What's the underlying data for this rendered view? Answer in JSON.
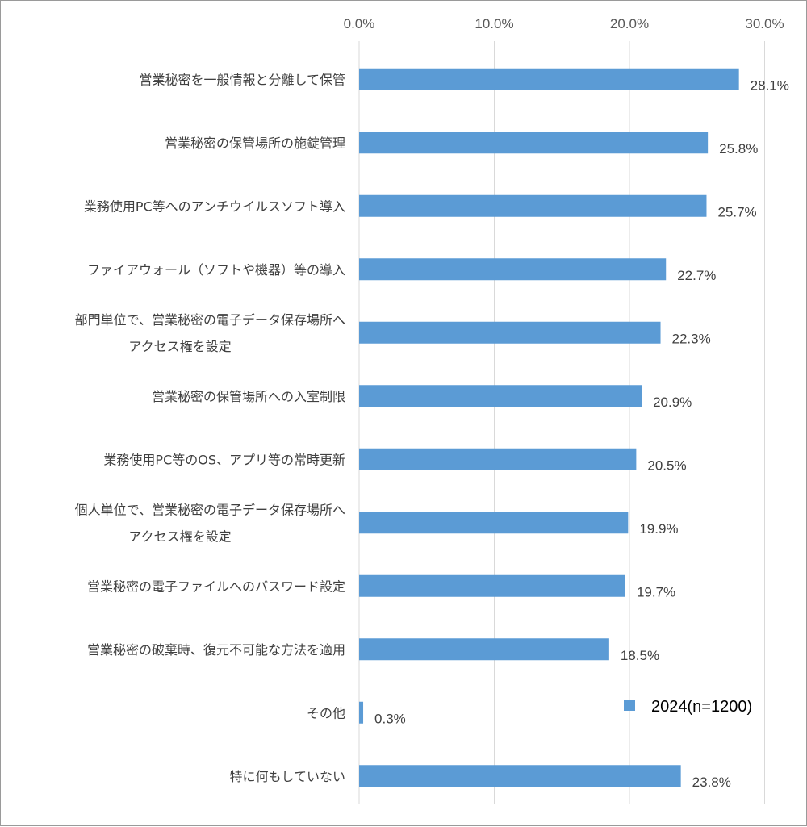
{
  "chart_data": {
    "type": "bar",
    "orientation": "horizontal",
    "title": "",
    "xlabel": "",
    "ylabel": "",
    "xlim": [
      0,
      30
    ],
    "x_ticks": [
      "0.0%",
      "10.0%",
      "20.0%",
      "30.0%"
    ],
    "x_tick_values": [
      0,
      10,
      20,
      30
    ],
    "x_axis_position": "top",
    "grid": true,
    "legend_position": "bottom-right",
    "bar_color": "#5b9bd5",
    "categories": [
      [
        "営業秘密を一般情報と分離して保管"
      ],
      [
        "営業秘密の保管場所の施錠管理"
      ],
      [
        "業務使用PC等へのアンチウイルスソフト導入"
      ],
      [
        "ファイアウォール（ソフトや機器）等の導入"
      ],
      [
        "部門単位で、営業秘密の電子データ保存場所へ",
        "アクセス権を設定"
      ],
      [
        "営業秘密の保管場所への入室制限"
      ],
      [
        "業務使用PC等のOS、アプリ等の常時更新"
      ],
      [
        "個人単位で、営業秘密の電子データ保存場所へ",
        "アクセス権を設定"
      ],
      [
        "営業秘密の電子ファイルへのパスワード設定"
      ],
      [
        "営業秘密の破棄時、復元不可能な方法を適用"
      ],
      [
        "その他"
      ],
      [
        "特に何もしていない"
      ]
    ],
    "series": [
      {
        "name": "2024(n=1200)",
        "values": [
          28.1,
          25.8,
          25.7,
          22.7,
          22.3,
          20.9,
          20.5,
          19.9,
          19.7,
          18.5,
          0.3,
          23.8
        ],
        "labels": [
          "28.1%",
          "25.8%",
          "25.7%",
          "22.7%",
          "22.3%",
          "20.9%",
          "20.5%",
          "19.9%",
          "19.7%",
          "18.5%",
          "0.3%",
          "23.8%"
        ]
      }
    ]
  }
}
